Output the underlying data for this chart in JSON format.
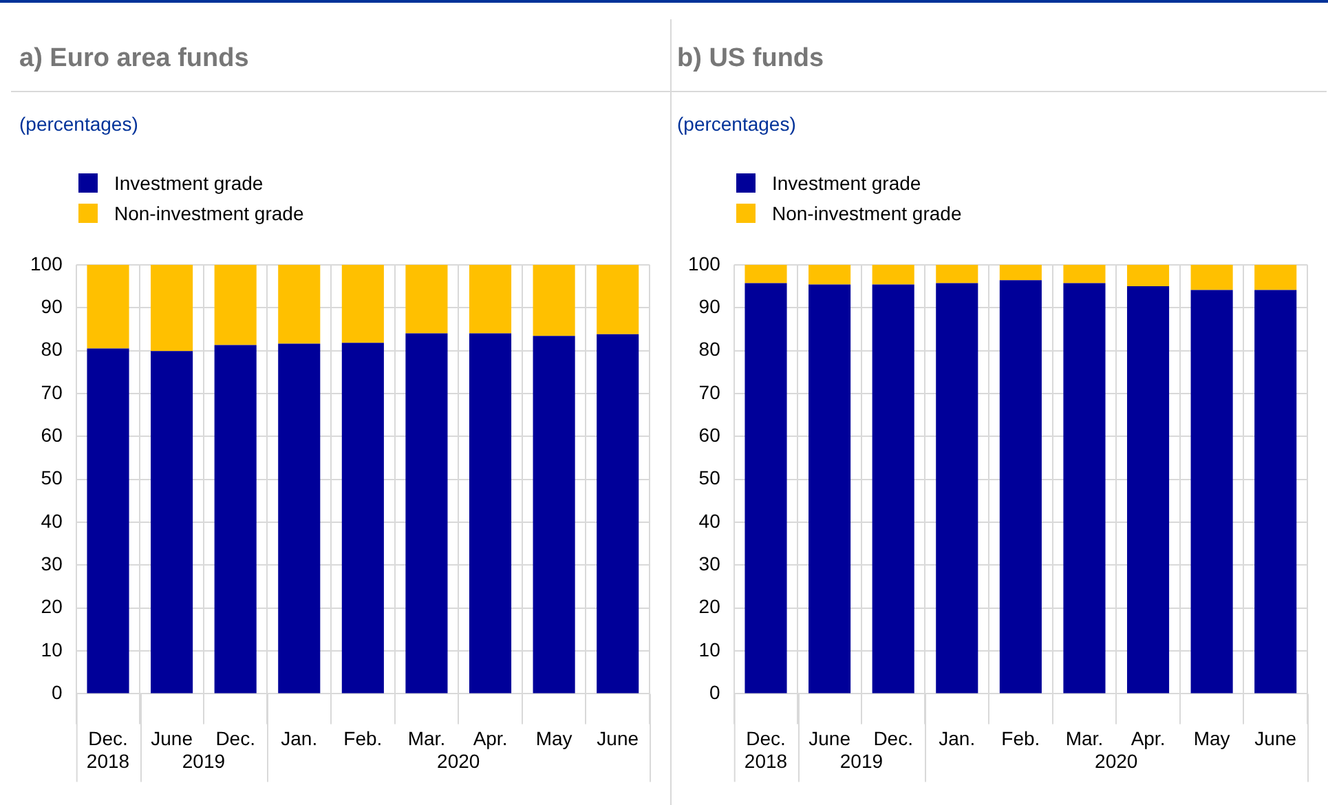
{
  "chart_data": [
    {
      "type": "bar",
      "title": "a) Euro area funds",
      "subtitle": "(percentages)",
      "categories": [
        "Dec.",
        "June",
        "Dec.",
        "Jan.",
        "Feb.",
        "Mar.",
        "Apr.",
        "May",
        "June"
      ],
      "stacked": true,
      "legend": "top left",
      "grid": true,
      "ylim": [
        0,
        100
      ],
      "yticks": [
        0,
        10,
        20,
        30,
        40,
        50,
        60,
        70,
        80,
        90,
        100
      ],
      "annotations": [
        "2018",
        "2019",
        "2020"
      ],
      "series": [
        {
          "name": "Investment grade",
          "color": "#000099",
          "values": [
            80.5,
            79.9,
            81.3,
            81.6,
            81.8,
            84.0,
            84.0,
            83.4,
            83.8
          ]
        },
        {
          "name": "Non-investment grade",
          "color": "#ffc000",
          "values": [
            19.5,
            20.1,
            18.7,
            18.4,
            18.2,
            16.0,
            16.0,
            16.6,
            16.2
          ]
        }
      ]
    },
    {
      "type": "bar",
      "title": "b) US funds",
      "subtitle": "(percentages)",
      "categories": [
        "Dec.",
        "June",
        "Dec.",
        "Jan.",
        "Feb.",
        "Mar.",
        "Apr.",
        "May",
        "June"
      ],
      "stacked": true,
      "legend": "top left",
      "grid": true,
      "ylim": [
        0,
        100
      ],
      "yticks": [
        0,
        10,
        20,
        30,
        40,
        50,
        60,
        70,
        80,
        90,
        100
      ],
      "annotations": [
        "2018",
        "2019",
        "2020"
      ],
      "series": [
        {
          "name": "Investment grade",
          "color": "#000099",
          "values": [
            95.7,
            95.4,
            95.4,
            95.7,
            96.4,
            95.7,
            95.0,
            94.1,
            94.1
          ]
        },
        {
          "name": "Non-investment grade",
          "color": "#ffc000",
          "values": [
            4.3,
            4.6,
            4.6,
            4.3,
            3.6,
            4.3,
            5.0,
            5.9,
            5.9
          ]
        }
      ]
    }
  ]
}
